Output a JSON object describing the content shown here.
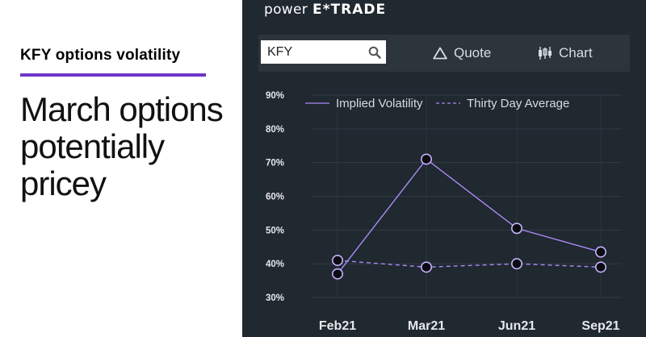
{
  "article": {
    "kicker": "KFY options volatility",
    "headline": "March options potentially pricey",
    "accent_color": "#6d35c8"
  },
  "app": {
    "logo_prefix": "power",
    "logo_brand": "E*TRADE",
    "search": {
      "value": "KFY",
      "placeholder": "",
      "icon": "search-icon"
    },
    "buttons": [
      {
        "label": "Quote",
        "icon": "triangle-icon"
      },
      {
        "label": "Chart",
        "icon": "candlestick-icon"
      }
    ],
    "panel_color": "#202830"
  },
  "chart_data": {
    "type": "line",
    "categories": [
      "Feb21",
      "Mar21",
      "Jun21",
      "Sep21"
    ],
    "ylim": [
      30,
      90
    ],
    "yticks": [
      30,
      40,
      50,
      60,
      70,
      80,
      90
    ],
    "ytick_labels": [
      "30%",
      "40%",
      "50%",
      "60%",
      "70%",
      "80%",
      "90%"
    ],
    "grid": true,
    "legend_position": "top",
    "series": [
      {
        "name": "Implied Volatility",
        "style": "solid",
        "color": "#a98cf5",
        "values": [
          37,
          71,
          50.5,
          43.5
        ]
      },
      {
        "name": "Thirty Day Average",
        "style": "dashed",
        "color": "#a98cf5",
        "values": [
          41,
          39,
          40,
          39
        ]
      }
    ]
  }
}
